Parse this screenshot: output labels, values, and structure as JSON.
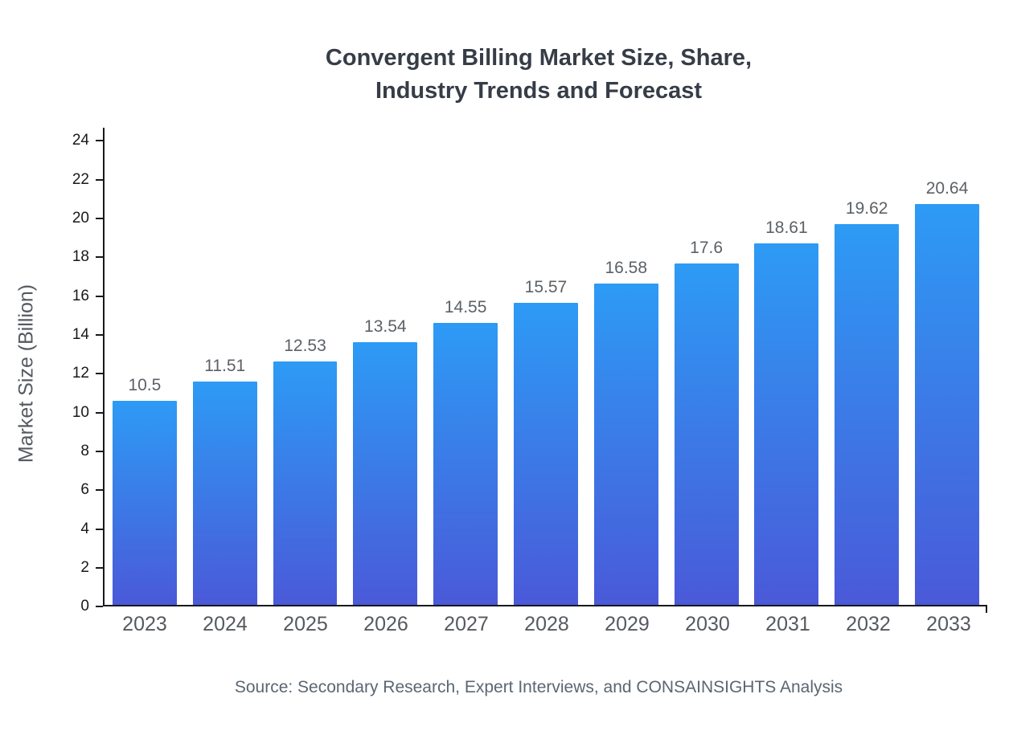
{
  "chart": {
    "title_line1": "Convergent Billing Market Size, Share,",
    "title_line2": "Industry Trends and Forecast",
    "source": "Source: Secondary Research, Expert Interviews, and CONSAINSIGHTS Analysis"
  },
  "chart_data": {
    "type": "bar",
    "title": "Convergent Billing Market Size, Share, Industry Trends and Forecast",
    "xlabel": "",
    "ylabel": "Market Size (Billion)",
    "categories": [
      "2023",
      "2024",
      "2025",
      "2026",
      "2027",
      "2028",
      "2029",
      "2030",
      "2031",
      "2032",
      "2033"
    ],
    "values": [
      10.5,
      11.51,
      12.53,
      13.54,
      14.55,
      15.57,
      16.58,
      17.6,
      18.61,
      19.62,
      20.64
    ],
    "ylim": [
      0,
      24
    ],
    "y_ticks": [
      0,
      2,
      4,
      6,
      8,
      10,
      12,
      14,
      16,
      18,
      20,
      22,
      24
    ],
    "grid": false,
    "legend": "none",
    "bar_gradient_top": "#2d9bf5",
    "bar_gradient_bottom": "#4a59d8",
    "axis_color": "#16191d"
  }
}
